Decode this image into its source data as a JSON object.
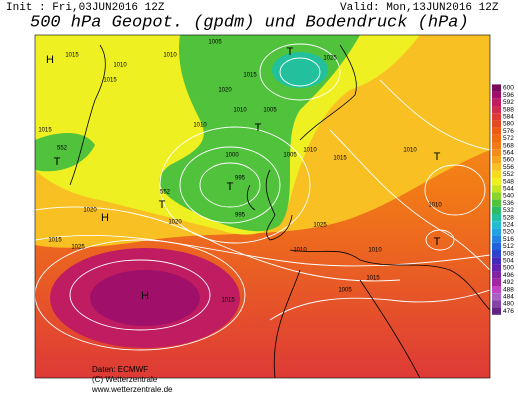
{
  "header": {
    "init": "Init : Fri,03JUN2016 12Z",
    "valid": "Valid: Mon,13JUN2016 12Z",
    "title": "500 hPa Geopot. (gpdm) und Bodendruck (hPa)"
  },
  "colorbar": {
    "labels": [
      600,
      596,
      592,
      588,
      584,
      580,
      576,
      572,
      568,
      564,
      560,
      556,
      552,
      548,
      544,
      540,
      536,
      532,
      528,
      524,
      520,
      516,
      512,
      508,
      504,
      500,
      496,
      492,
      488,
      484,
      480,
      476
    ],
    "colors": [
      "#7a0a5a",
      "#a0106a",
      "#c01c62",
      "#d02c50",
      "#de3a36",
      "#e44a22",
      "#ec5a14",
      "#f06a12",
      "#f27a16",
      "#f48c1c",
      "#f6a420",
      "#f8c022",
      "#f8dc22",
      "#eef022",
      "#c4e622",
      "#8cd42a",
      "#50c23c",
      "#2cbc64",
      "#22c09c",
      "#22bed0",
      "#22a4e4",
      "#2282e2",
      "#2262dc",
      "#2a44cc",
      "#4428bc",
      "#6222ae",
      "#8224a2",
      "#a026a2",
      "#c242c2",
      "#a862c4",
      "#8444a6",
      "#622482"
    ]
  },
  "map": {
    "labels": [
      "1005",
      "1010",
      "1015",
      "1010",
      "1015",
      "1020",
      "1015",
      "1010",
      "1005",
      "1010",
      "1000",
      "995",
      "995",
      "1005",
      "1010",
      "1015",
      "1020",
      "1025",
      "1015",
      "1010",
      "1010",
      "1020",
      "1015",
      "1025",
      "1025",
      "1015",
      "1010",
      "1010",
      "1005",
      "1015",
      "552",
      "552",
      "H",
      "H",
      "H",
      "T",
      "T",
      "T",
      "T",
      "T",
      "T",
      "T"
    ]
  },
  "footer": {
    "source": "Daten: ECMWF",
    "copyright": "(C) Wetterzentrale",
    "url": "www.wetterzentrale.de"
  }
}
